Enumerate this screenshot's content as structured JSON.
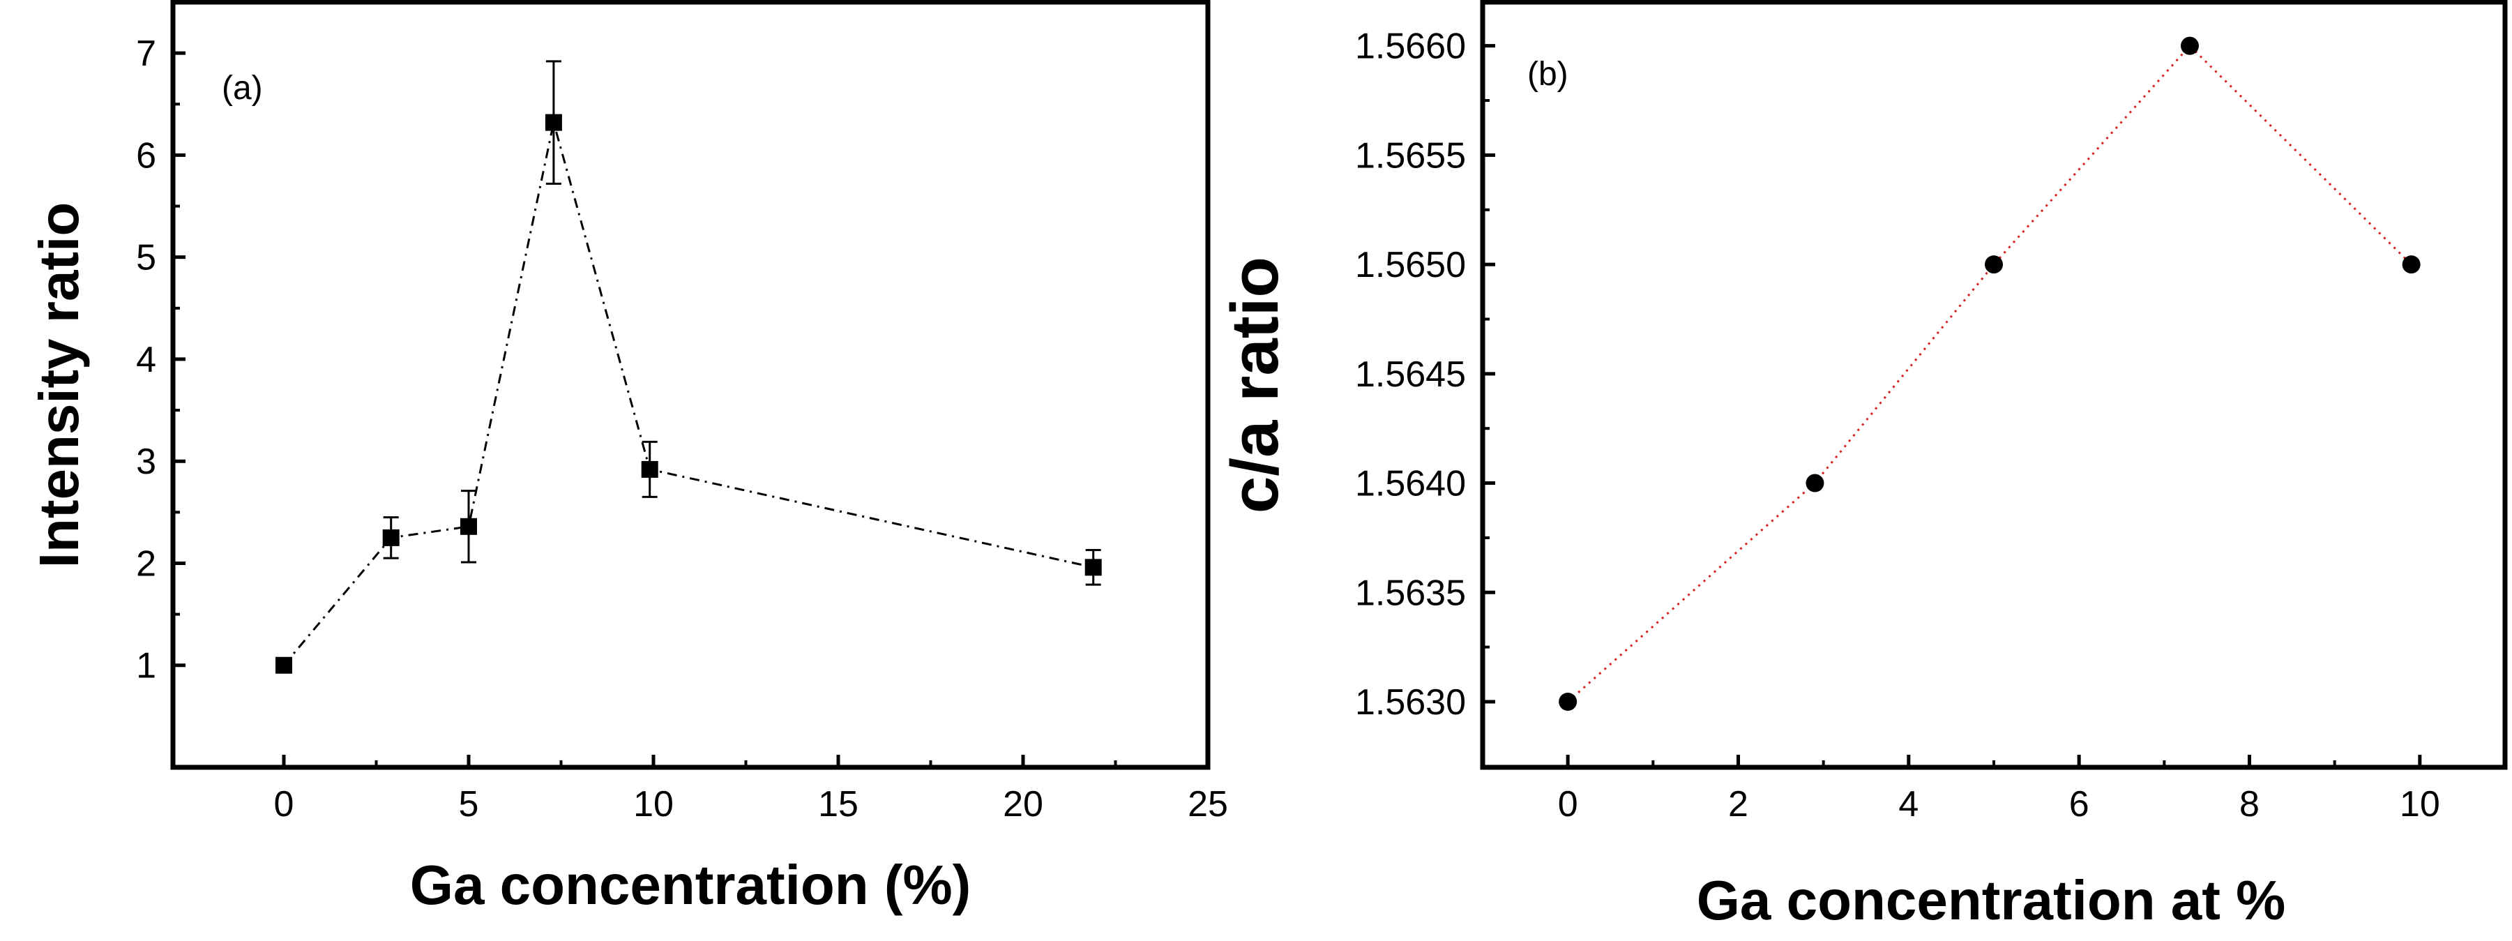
{
  "chart_data": [
    {
      "type": "line",
      "panel_label": "(a)",
      "xlabel": "Ga concentration (%)",
      "ylabel": "Intensity ratio",
      "xlim": [
        -3,
        25
      ],
      "ylim": [
        0.0,
        7.5
      ],
      "xticks": [
        0,
        5,
        10,
        15,
        20,
        25
      ],
      "yticks": [
        1,
        2,
        3,
        4,
        5,
        6,
        7
      ],
      "grid": false,
      "line_style": "dashed",
      "line_color": "#000000",
      "marker": "square",
      "series": [
        {
          "x": [
            0,
            2.9,
            5,
            7.3,
            9.9,
            21.9
          ],
          "y": [
            1.0,
            2.25,
            2.36,
            6.32,
            2.92,
            1.96
          ],
          "y_error": [
            0,
            0.2,
            0.35,
            0.6,
            0.27,
            0.17
          ]
        }
      ]
    },
    {
      "type": "line",
      "panel_label": "(b)",
      "xlabel": "Ga concentration at %",
      "ylabel": "c/a ratio",
      "xlim": [
        -1,
        11
      ],
      "ylim": [
        1.5627,
        1.5662
      ],
      "xticks": [
        0,
        2,
        4,
        6,
        8,
        10
      ],
      "yticks": [
        "1.5630",
        "1.5635",
        "1.5640",
        "1.5645",
        "1.5650",
        "1.5655",
        "1.5660"
      ],
      "grid": false,
      "line_style": "dotted",
      "line_color": "#d62020",
      "marker": "circle",
      "series": [
        {
          "x": [
            0,
            2.9,
            5,
            7.3,
            9.9
          ],
          "y": [
            1.563,
            1.564,
            1.565,
            1.566,
            1.565
          ]
        }
      ]
    }
  ]
}
